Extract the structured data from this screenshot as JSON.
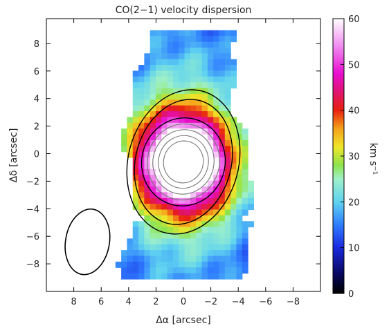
{
  "chart_data": {
    "type": "heatmap",
    "title": "CO(2−1) velocity dispersion",
    "xlabel": "Δα [arcsec]",
    "ylabel": "Δδ [arcsec]",
    "xlim": [
      10,
      -10
    ],
    "ylim": [
      -10,
      9.8
    ],
    "x_ticks": [
      8,
      6,
      4,
      2,
      0,
      -2,
      -4,
      -6,
      -8
    ],
    "x_tick_labels": [
      "8",
      "6",
      "4",
      "2",
      "0",
      "−2",
      "−4",
      "−6",
      "−8"
    ],
    "y_ticks": [
      8,
      6,
      4,
      2,
      0,
      -2,
      -4,
      -6,
      -8
    ],
    "y_tick_labels": [
      "8",
      "6",
      "4",
      "2",
      "0",
      "−2",
      "−4",
      "−6",
      "−8"
    ],
    "colorbar": {
      "label": "km s⁻¹",
      "range": [
        0,
        60
      ],
      "ticks": [
        0,
        10,
        20,
        30,
        40,
        50,
        60
      ],
      "tick_labels": [
        "0",
        "10",
        "20",
        "30",
        "40",
        "50",
        "60"
      ],
      "stops": [
        {
          "value": 0,
          "color": "#000000"
        },
        {
          "value": 5,
          "color": "#0a0a6e"
        },
        {
          "value": 10,
          "color": "#1a2adf"
        },
        {
          "value": 15,
          "color": "#2f7dff"
        },
        {
          "value": 20,
          "color": "#5fd3f0"
        },
        {
          "value": 25,
          "color": "#9ef0c8"
        },
        {
          "value": 28,
          "color": "#8ee34c"
        },
        {
          "value": 32,
          "color": "#f0e62a"
        },
        {
          "value": 36,
          "color": "#f5a21c"
        },
        {
          "value": 40,
          "color": "#e8200e"
        },
        {
          "value": 44,
          "color": "#e01470"
        },
        {
          "value": 48,
          "color": "#e80ed0"
        },
        {
          "value": 54,
          "color": "#f08cf0"
        },
        {
          "value": 60,
          "color": "#ffffff"
        }
      ]
    },
    "field": {
      "center": [
        0,
        -0.6
      ],
      "peak": 59,
      "core_width": [
        3.6,
        3.8
      ],
      "core_angle_deg": -15,
      "background": 12,
      "bar_height": 19,
      "bar_size": [
        5.2,
        9.5
      ]
    },
    "beam": {
      "center": [
        7.0,
        -6.4
      ],
      "axes": [
        3.2,
        4.8
      ],
      "angle_deg": 10
    },
    "colors": {
      "outline": "#000000",
      "beam": "#000000",
      "contour_inner": "#777777"
    }
  }
}
